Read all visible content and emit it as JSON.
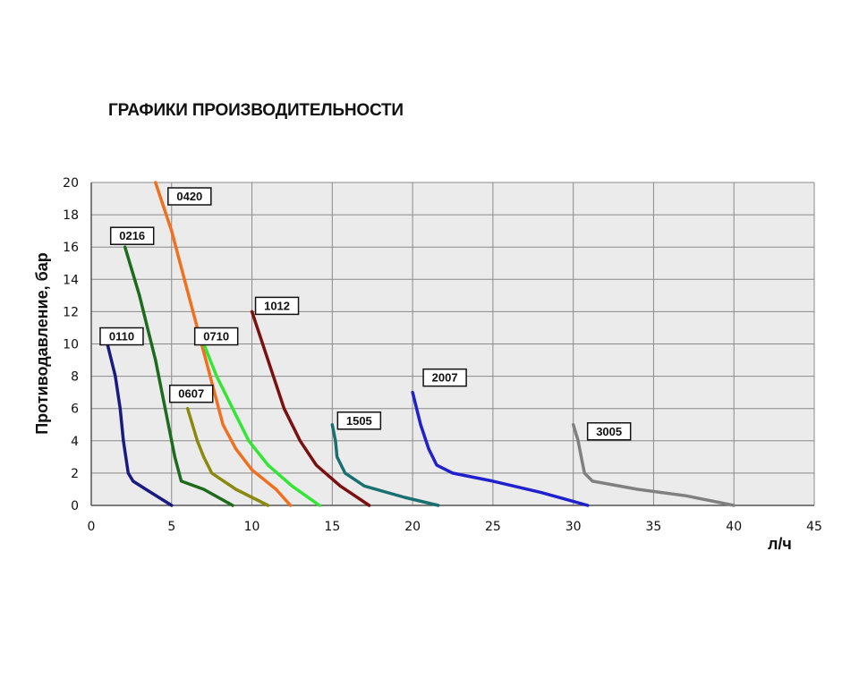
{
  "chart_data": {
    "type": "line",
    "title": "ГРАФИКИ ПРОИЗВОДИТЕЛЬНОСТИ",
    "xlabel": "л/ч",
    "ylabel": "Противодавление, бар",
    "xlim": [
      0,
      45
    ],
    "ylim": [
      0,
      20
    ],
    "x_ticks": [
      "0",
      "5",
      "10",
      "15",
      "20",
      "25",
      "30",
      "35",
      "40",
      "45"
    ],
    "y_ticks": [
      "0",
      "2",
      "4",
      "6",
      "8",
      "10",
      "12",
      "14",
      "16",
      "18",
      "20"
    ],
    "grid": true,
    "series": [
      {
        "name": "0110",
        "color": "#1a1a80",
        "points": [
          [
            1.0,
            10
          ],
          [
            1.5,
            8
          ],
          [
            1.8,
            6
          ],
          [
            2.0,
            4
          ],
          [
            2.3,
            2
          ],
          [
            2.6,
            1.5
          ],
          [
            3.4,
            1.0
          ],
          [
            4.2,
            0.5
          ],
          [
            5.0,
            0
          ]
        ]
      },
      {
        "name": "0216",
        "color": "#1e6b1e",
        "points": [
          [
            2.1,
            16
          ],
          [
            3.0,
            13
          ],
          [
            3.5,
            11
          ],
          [
            4.0,
            9
          ],
          [
            4.4,
            7
          ],
          [
            4.8,
            5
          ],
          [
            5.2,
            3
          ],
          [
            5.6,
            1.5
          ],
          [
            7.0,
            1.0
          ],
          [
            8.8,
            0
          ]
        ]
      },
      {
        "name": "0420",
        "color": "#f07020",
        "points": [
          [
            4.0,
            20
          ],
          [
            5.0,
            17
          ],
          [
            5.8,
            14
          ],
          [
            6.6,
            11
          ],
          [
            7.4,
            8
          ],
          [
            8.2,
            5
          ],
          [
            9.0,
            3.5
          ],
          [
            10.0,
            2.2
          ],
          [
            11.5,
            1.0
          ],
          [
            12.4,
            0
          ]
        ]
      },
      {
        "name": "0607",
        "color": "#8a8a10",
        "points": [
          [
            6.0,
            6
          ],
          [
            6.3,
            5
          ],
          [
            6.6,
            4
          ],
          [
            7.0,
            3
          ],
          [
            7.5,
            2
          ],
          [
            9.0,
            1.0
          ],
          [
            11.0,
            0
          ]
        ]
      },
      {
        "name": "0710",
        "color": "#33e633",
        "points": [
          [
            7.0,
            10
          ],
          [
            7.8,
            8
          ],
          [
            8.8,
            6
          ],
          [
            9.8,
            4
          ],
          [
            11.0,
            2.5
          ],
          [
            12.5,
            1.2
          ],
          [
            14.2,
            0
          ]
        ]
      },
      {
        "name": "1012",
        "color": "#7a1010",
        "points": [
          [
            10.0,
            12
          ],
          [
            11.0,
            9
          ],
          [
            12.0,
            6
          ],
          [
            13.0,
            4
          ],
          [
            14.0,
            2.5
          ],
          [
            15.5,
            1.2
          ],
          [
            17.3,
            0
          ]
        ]
      },
      {
        "name": "1505",
        "color": "#1a7070",
        "points": [
          [
            15.0,
            5
          ],
          [
            15.2,
            4
          ],
          [
            15.3,
            3
          ],
          [
            15.8,
            2
          ],
          [
            17.0,
            1.2
          ],
          [
            19.5,
            0.5
          ],
          [
            21.6,
            0
          ]
        ]
      },
      {
        "name": "2007",
        "color": "#2020cc",
        "points": [
          [
            20.0,
            7
          ],
          [
            20.5,
            5
          ],
          [
            21.0,
            3.5
          ],
          [
            21.5,
            2.5
          ],
          [
            22.5,
            2.0
          ],
          [
            25.0,
            1.5
          ],
          [
            28.0,
            0.8
          ],
          [
            30.9,
            0
          ]
        ]
      },
      {
        "name": "3005",
        "color": "#808080",
        "points": [
          [
            30.0,
            5
          ],
          [
            30.3,
            4
          ],
          [
            30.5,
            3
          ],
          [
            30.7,
            2
          ],
          [
            31.2,
            1.5
          ],
          [
            34.0,
            1.0
          ],
          [
            37.0,
            0.6
          ],
          [
            40.0,
            0
          ]
        ]
      }
    ]
  }
}
